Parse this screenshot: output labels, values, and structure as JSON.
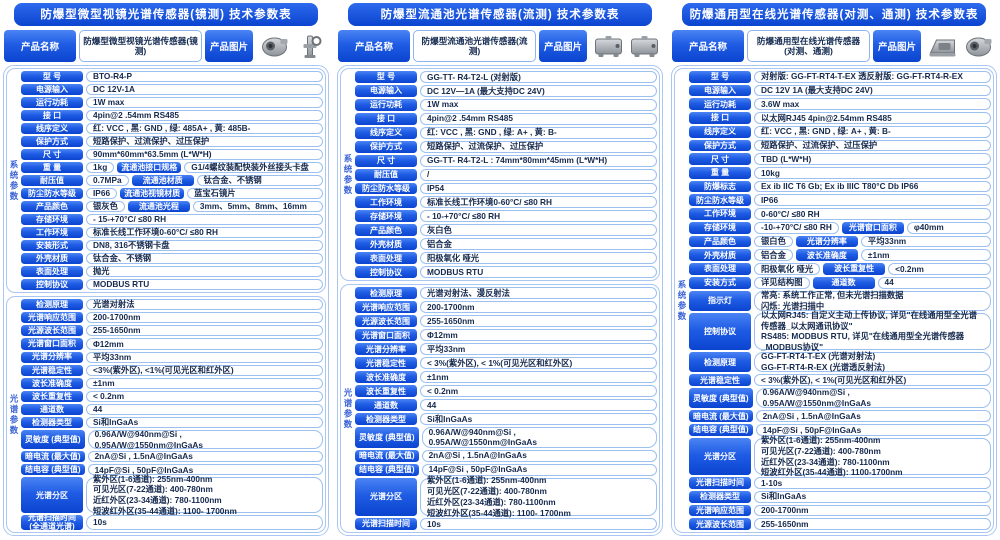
{
  "colors": {
    "pill_blue_top": "#4a84f4",
    "pill_blue_bottom": "#0b44cf",
    "title_blue": "#0d47cf",
    "value_text": "#15294e",
    "border_light_blue": "#9cc0f0",
    "device_grey": "#b9bdc4"
  },
  "panels": [
    {
      "title": "防爆型微型视镜光谱传感器(镜测)  技术参数表",
      "product_label": "产品名称",
      "product_name": "防爆型微型视镜光谱传感器(镜测)",
      "image_label": "产品图片",
      "images": [
        "round-sensor",
        "valve-probe"
      ],
      "sections": [
        {
          "side_label": "系统参数",
          "rows": [
            {
              "cells": [
                {
                  "l": "型 号",
                  "v": "BTO-R4-P"
                }
              ]
            },
            {
              "cells": [
                {
                  "l": "电源输入",
                  "v": "DC 12V-1A"
                }
              ]
            },
            {
              "cells": [
                {
                  "l": "运行功耗",
                  "v": "1W max"
                }
              ]
            },
            {
              "cells": [
                {
                  "l": "接 口",
                  "v": "4pin@2 .54mm RS485"
                }
              ]
            },
            {
              "cells": [
                {
                  "l": "线序定义",
                  "v": "红: VCC , 黑: GND , 绿: 485A+ , 黄: 485B-"
                }
              ]
            },
            {
              "cells": [
                {
                  "l": "保护方式",
                  "v": "短路保护、过流保护、过压保护"
                }
              ]
            },
            {
              "cells": [
                {
                  "l": "尺 寸",
                  "v": "90mm*60mm*63.5mm (L*W*H)"
                }
              ]
            },
            {
              "cells": [
                {
                  "l": "重 量",
                  "v": "1kg"
                },
                {
                  "l": "流通池接口规格",
                  "v": "G1/4螺纹装配快装外丝接头卡盘"
                }
              ]
            },
            {
              "cells": [
                {
                  "l": "耐压值",
                  "v": "0.7MPa"
                },
                {
                  "l": "流通池材质",
                  "v": "钛合金、不锈钢"
                }
              ]
            },
            {
              "cells": [
                {
                  "l": "防尘防水等级",
                  "v": "IP66"
                },
                {
                  "l": "流通池视镜材质",
                  "v": "蓝宝石镜片"
                }
              ]
            },
            {
              "cells": [
                {
                  "l": "产品颜色",
                  "v": "银灰色"
                },
                {
                  "l": "流通池光程",
                  "v": "3mm、5mm、8mm、16mm"
                }
              ]
            },
            {
              "cells": [
                {
                  "l": "存储环境",
                  "v": "- 15-+70°C/ ≤80 RH"
                }
              ]
            },
            {
              "cells": [
                {
                  "l": "工作环境",
                  "v": "标准长线工作环境0-60°C/ ≤80 RH"
                }
              ]
            },
            {
              "cells": [
                {
                  "l": "安装形式",
                  "v": "DN8, 316不锈钢卡盘"
                }
              ]
            },
            {
              "cells": [
                {
                  "l": "外壳材质",
                  "v": "钛合金、不锈钢"
                }
              ]
            },
            {
              "cells": [
                {
                  "l": "表面处理",
                  "v": "抛光"
                }
              ]
            },
            {
              "cells": [
                {
                  "l": "控制协议",
                  "v": "MODBUS RTU"
                }
              ]
            }
          ]
        },
        {
          "side_label": "光谱参数",
          "rows": [
            {
              "cells": [
                {
                  "l": "检测原理",
                  "v": "光谱对射法"
                }
              ]
            },
            {
              "cells": [
                {
                  "l": "光谱响应范围",
                  "v": "200-1700nm"
                }
              ]
            },
            {
              "cells": [
                {
                  "l": "光源波长范围",
                  "v": "255-1650nm"
                }
              ]
            },
            {
              "cells": [
                {
                  "l": "光谱窗口面积",
                  "v": "Φ12mm"
                }
              ]
            },
            {
              "cells": [
                {
                  "l": "光谱分辨率",
                  "v": "平均33nm"
                }
              ]
            },
            {
              "cells": [
                {
                  "l": "光谱稳定性",
                  "v": "<3%(紫外区), <1%(可见光区和红外区)"
                }
              ]
            },
            {
              "cells": [
                {
                  "l": "波长准确度",
                  "v": "±1nm"
                }
              ]
            },
            {
              "cells": [
                {
                  "l": "波长重复性",
                  "v": "< 0.2nm"
                }
              ]
            },
            {
              "cells": [
                {
                  "l": "通道数",
                  "v": "44"
                }
              ]
            },
            {
              "cells": [
                {
                  "l": "检测器类型",
                  "v": "Si和InGaAs"
                }
              ]
            },
            {
              "cells": [
                {
                  "l": "灵敏度 (典型值)",
                  "v": "0.96A/W@940nm@Si ,\n0.95A/W@1550nm@InGaAs"
                }
              ]
            },
            {
              "cells": [
                {
                  "l": "暗电流 (最大值)",
                  "v": "2nA@Si , 1.5nA@InGaAs"
                }
              ]
            },
            {
              "cells": [
                {
                  "l": "结电容 (典型值)",
                  "v": "14pF@Si , 50pF@InGaAs"
                }
              ]
            },
            {
              "cells": [
                {
                  "l": "光谱分区",
                  "v": "紫外区(1-6通道):    255nm-400nm\n可见光区(7-22通道): 400-780nm\n近红外区(23-34通道):   780-1100nm\n短波红外区(35-44通道):   1100- 1700nm"
                }
              ]
            },
            {
              "cells": [
                {
                  "l": "光谱扫描时间\n(全通道光谱)",
                  "v": "10s"
                }
              ]
            }
          ]
        }
      ]
    },
    {
      "title": "防爆型流通池光谱传感器(流测)  技术参数表",
      "product_label": "产品名称",
      "product_name": "防爆型流通池光谱传感器(流测)",
      "image_label": "产品图片",
      "images": [
        "box-unit",
        "box-unit"
      ],
      "sections": [
        {
          "side_label": "系统参数",
          "rows": [
            {
              "cells": [
                {
                  "l": "型 号",
                  "v": "GG-TT- R4-T2-L  (对射版)"
                }
              ]
            },
            {
              "cells": [
                {
                  "l": "电源输入",
                  "v": "DC 12V—1A   (最大支持DC 24V)"
                }
              ]
            },
            {
              "cells": [
                {
                  "l": "运行功耗",
                  "v": "1W max"
                }
              ]
            },
            {
              "cells": [
                {
                  "l": "接 口",
                  "v": "4pin@2 .54mm RS485"
                }
              ]
            },
            {
              "cells": [
                {
                  "l": "线序定义",
                  "v": "红: VCC , 黑: GND , 绿: A+ , 黄:  B-"
                }
              ]
            },
            {
              "cells": [
                {
                  "l": "保护方式",
                  "v": "短路保护、过流保护、过压保护"
                }
              ]
            },
            {
              "cells": [
                {
                  "l": "尺 寸",
                  "v": "GG-TT- R4-T2-L :    74mm*80mm*45mm  (L*W*H)"
                }
              ]
            },
            {
              "cells": [
                {
                  "l": "耐压值",
                  "v": "/"
                }
              ]
            },
            {
              "cells": [
                {
                  "l": "防尘防水等级",
                  "v": "IP54"
                }
              ]
            },
            {
              "cells": [
                {
                  "l": "工作环境",
                  "v": "标准长线工作环境0-60°C/ ≤80 RH"
                }
              ]
            },
            {
              "cells": [
                {
                  "l": "存储环境",
                  "v": "- 10-+70°C/ ≤80 RH"
                }
              ]
            },
            {
              "cells": [
                {
                  "l": "产品颜色",
                  "v": "灰白色"
                }
              ]
            },
            {
              "cells": [
                {
                  "l": "外壳材质",
                  "v": "铝合金"
                }
              ]
            },
            {
              "cells": [
                {
                  "l": "表面处理",
                  "v": "阳极氧化 哑光"
                }
              ]
            },
            {
              "cells": [
                {
                  "l": "控制协议",
                  "v": "MODBUS RTU"
                }
              ]
            }
          ]
        },
        {
          "side_label": "光谱参数",
          "rows": [
            {
              "cells": [
                {
                  "l": "检测原理",
                  "v": "光谱对射法、漫反射法"
                }
              ]
            },
            {
              "cells": [
                {
                  "l": "光谱响应范围",
                  "v": "200-1700nm"
                }
              ]
            },
            {
              "cells": [
                {
                  "l": "光源波长范围",
                  "v": "255-1650nm"
                }
              ]
            },
            {
              "cells": [
                {
                  "l": "光谱窗口面积",
                  "v": "Φ12mm"
                }
              ]
            },
            {
              "cells": [
                {
                  "l": "光谱分辨率",
                  "v": "平均33nm"
                }
              ]
            },
            {
              "cells": [
                {
                  "l": "光谱稳定性",
                  "v": "< 3%(紫外区), < 1%(可见光区和红外区)"
                }
              ]
            },
            {
              "cells": [
                {
                  "l": "波长准确度",
                  "v": "±1nm"
                }
              ]
            },
            {
              "cells": [
                {
                  "l": "波长重复性",
                  "v": "< 0.2nm"
                }
              ]
            },
            {
              "cells": [
                {
                  "l": "通道数",
                  "v": "44"
                }
              ]
            },
            {
              "cells": [
                {
                  "l": "检测器类型",
                  "v": "Si和InGaAs"
                }
              ]
            },
            {
              "cells": [
                {
                  "l": "灵敏度 (典型值)",
                  "v": "0.96A/W@940nm@Si ,\n0.95A/W@1550nm@InGaAs"
                }
              ]
            },
            {
              "cells": [
                {
                  "l": "暗电流 (最大值)",
                  "v": "2nA@Si , 1.5nA@InGaAs"
                }
              ]
            },
            {
              "cells": [
                {
                  "l": "结电容 (典型值)",
                  "v": "14pF@Si , 50pF@InGaAs"
                }
              ]
            },
            {
              "cells": [
                {
                  "l": "光谱分区",
                  "v": "紫外区(1-6通道):    255nm-400nm\n可见光区(7-22通道): 400-780nm\n近红外区(23-34通道):   780-1100nm\n短波红外区(35-44通道):   1100- 1700nm"
                }
              ]
            },
            {
              "cells": [
                {
                  "l": "光谱扫描时间",
                  "v": "10s"
                }
              ]
            }
          ]
        }
      ]
    },
    {
      "title": "防爆通用型在线光谱传感器(对测、通测)  技术参数表",
      "product_label": "产品名称",
      "product_name": "防爆通用型在线光谱传感器\n(对测、通测)",
      "image_label": "产品图片",
      "images": [
        "bracket-unit",
        "round-sensor"
      ],
      "sections": [
        {
          "side_label": "系统参数",
          "rows": [
            {
              "cells": [
                {
                  "l": "型 号",
                  "v": "对射版: GG-FT-RT4-T-EX  透反射版: GG-FT-RT4-R-EX"
                }
              ]
            },
            {
              "cells": [
                {
                  "l": "电源输入",
                  "v": "DC 12V 1A (最大支持DC 24V)"
                }
              ]
            },
            {
              "cells": [
                {
                  "l": "运行功耗",
                  "v": "3.6W max"
                }
              ]
            },
            {
              "cells": [
                {
                  "l": "接 口",
                  "v": "以太网RJ45    4pin@2.54mm RS485"
                }
              ]
            },
            {
              "cells": [
                {
                  "l": "线序定义",
                  "v": "红: VCC , 黑: GND , 绿: A+ , 黄: B-"
                }
              ]
            },
            {
              "cells": [
                {
                  "l": "保护方式",
                  "v": "短路保护、过流保护、过压保护"
                }
              ]
            },
            {
              "cells": [
                {
                  "l": "尺 寸",
                  "v": "TBD (L*W*H)"
                }
              ]
            },
            {
              "cells": [
                {
                  "l": "重 量",
                  "v": "10kg"
                }
              ]
            },
            {
              "cells": [
                {
                  "l": "防爆标志",
                  "v": "Ex ib IIC T6 Gb; Ex ib IIIC T80°C Db  IP66"
                }
              ]
            },
            {
              "cells": [
                {
                  "l": "防尘防水等级",
                  "v": "IP66"
                }
              ]
            },
            {
              "cells": [
                {
                  "l": "工作环境",
                  "v": "0-60°C/ ≤80 RH"
                }
              ]
            },
            {
              "cells": [
                {
                  "l": "存储环境",
                  "v": "-10-+70°C/ ≤80 RH"
                },
                {
                  "l": "光谱窗口面积",
                  "v": "φ40mm"
                }
              ]
            },
            {
              "cells": [
                {
                  "l": "产品颜色",
                  "v": "银白色"
                },
                {
                  "l": "光谱分辨率",
                  "v": "平均33nm"
                }
              ]
            },
            {
              "cells": [
                {
                  "l": "外壳材质",
                  "v": "铝合金"
                },
                {
                  "l": "波长准确度",
                  "v": "±1nm"
                }
              ]
            },
            {
              "cells": [
                {
                  "l": "表面处理",
                  "v": "阳极氧化 哑光"
                },
                {
                  "l": "波长重复性",
                  "v": "<0.2nm"
                }
              ]
            },
            {
              "cells": [
                {
                  "l": "安装方式",
                  "v": "详见结构图"
                },
                {
                  "l": "通道数",
                  "v": "44"
                }
              ]
            },
            {
              "cells": [
                {
                  "l": "指示灯",
                  "v": "常亮: 系统工作正常, 但未光谱扫描数据\n闪烁: 光谱扫描中"
                }
              ]
            },
            {
              "cells": [
                {
                  "l": "控制协议",
                  "v": "以太网RJ45: 自定义主动上传协议, 详见\"在线通用型全光谱传感器_以太网通讯协议\"\nRS485: MODBUS RTU, 详见\"在线通用型全光谱传感器_MODBUS协议\""
                }
              ]
            },
            {
              "cells": [
                {
                  "l": "检测原理",
                  "v": "GG-FT-RT4-T-EX (光谱对射法)\nGG-FT-RT4-R-EX (光谱透反射法)"
                }
              ]
            },
            {
              "cells": [
                {
                  "l": "光谱稳定性",
                  "v": "< 3%(紫外区), < 1%(可见光区和红外区)"
                }
              ]
            },
            {
              "cells": [
                {
                  "l": "灵敏度 (典型值)",
                  "v": "0.96A/W@940nm@Si ,\n0.95A/W@1550nm@InGaAs"
                }
              ]
            },
            {
              "cells": [
                {
                  "l": "暗电流 (最大值)",
                  "v": "2nA@Si , 1.5nA@InGaAs"
                }
              ]
            },
            {
              "cells": [
                {
                  "l": "结电容 (典型值)",
                  "v": "14pF@Si , 50pF@InGaAs"
                }
              ]
            },
            {
              "cells": [
                {
                  "l": "光谱分区",
                  "v": "紫外区(1-6通道): 255nm-400nm\n可见光区(7-22通道): 400-780nm\n近红外区(23-34通道): 780-1100nm\n短波红外区(35-44通道): 1100-1700nm"
                }
              ]
            },
            {
              "cells": [
                {
                  "l": "光谱扫描时间",
                  "v": "1-10s"
                }
              ]
            },
            {
              "cells": [
                {
                  "l": "检测器类型",
                  "v": "Si和InGaAs"
                }
              ]
            },
            {
              "cells": [
                {
                  "l": "光谱响应范围",
                  "v": "200-1700nm"
                }
              ]
            },
            {
              "cells": [
                {
                  "l": "光源波长范围",
                  "v": "255-1650nm"
                }
              ]
            }
          ]
        }
      ]
    }
  ]
}
